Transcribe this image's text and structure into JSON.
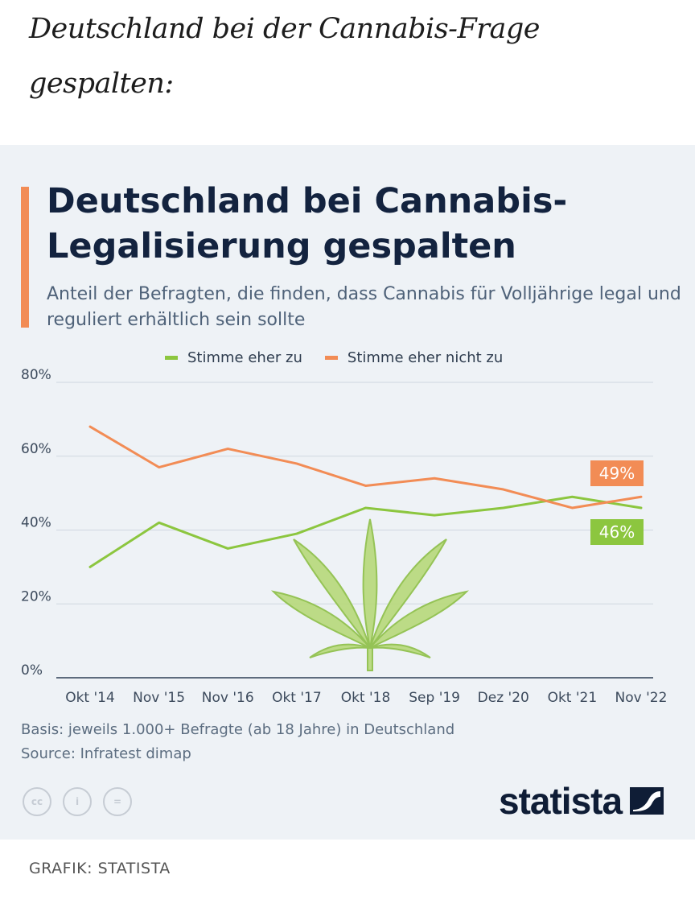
{
  "headline": "Deutschland bei der Cannabis-Frage gespalten:",
  "credit": "GRAFIK: STATISTA",
  "footer": {
    "basis": "Basis: jeweils 1.000+ Befragte (ab 18 Jahre) in Deutschland",
    "source": "Source: Infratest dimap"
  },
  "brand": {
    "name": "statista",
    "color": "#0f1d36"
  },
  "icons": [
    "cc-icon",
    "by-icon",
    "nd-icon"
  ],
  "icon_labels": {
    "cc": "cc",
    "by": "i",
    "nd": "="
  },
  "colors": {
    "accent": "#f28c55",
    "agree": "#8cc63f",
    "disagree": "#f28c55",
    "background": "#eef2f6",
    "title": "#13233f"
  },
  "chart_data": {
    "type": "line",
    "title": "Deutschland bei Cannabis-Legalisierung gespalten",
    "subtitle": "Anteil der Befragten, die finden, dass Cannabis für Volljährige legal und reguliert erhältlich sein sollte",
    "categories": [
      "Okt '14",
      "Nov '15",
      "Nov '16",
      "Okt '17",
      "Okt '18",
      "Sep '19",
      "Dez '20",
      "Okt '21",
      "Nov '22"
    ],
    "series": [
      {
        "name": "Stimme eher zu",
        "color": "#8cc63f",
        "values": [
          30,
          42,
          35,
          39,
          46,
          44,
          46,
          49,
          46
        ],
        "end_label": "46%"
      },
      {
        "name": "Stimme eher nicht zu",
        "color": "#f28c55",
        "values": [
          68,
          57,
          62,
          58,
          52,
          54,
          51,
          46,
          49
        ],
        "end_label": "49%"
      }
    ],
    "y_ticks": [
      "0%",
      "20%",
      "40%",
      "60%",
      "80%"
    ],
    "y_tick_values": [
      0,
      20,
      40,
      60,
      80
    ],
    "ylim": [
      0,
      80
    ],
    "xlabel": "",
    "ylabel": "",
    "grid": true,
    "legend": "top-center"
  }
}
